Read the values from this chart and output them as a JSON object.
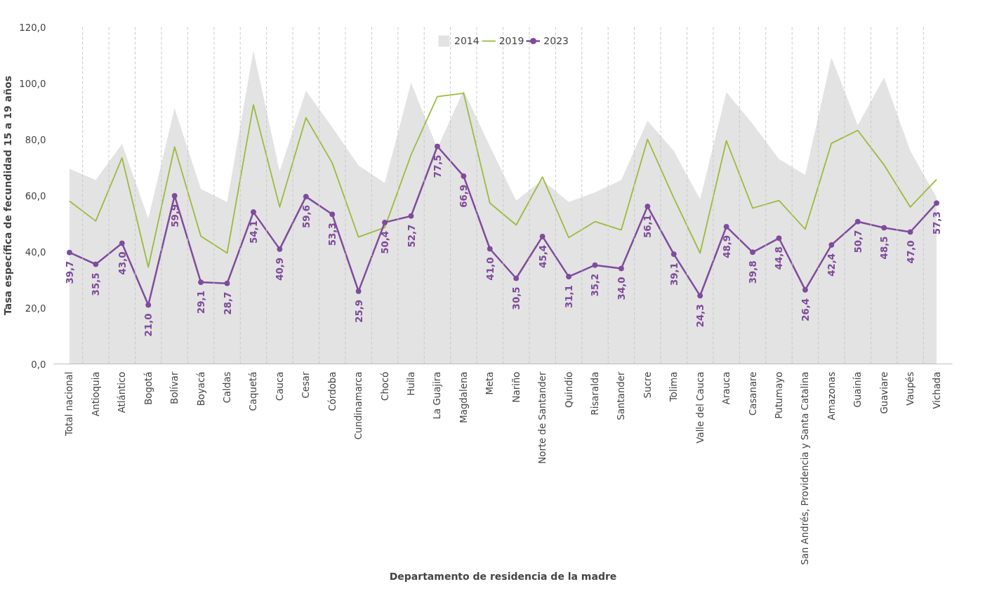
{
  "chart_data": {
    "type": "line",
    "xlabel": "Departamento de residencia de la madre",
    "ylabel": "Tasa específica de fecundidad 15 a 19 años",
    "categories": [
      "Total nacional",
      "Antioquia",
      "Atlántico",
      "Bogotá",
      "Bolívar",
      "Boyacá",
      "Caldas",
      "Caquetá",
      "Cauca",
      "Cesar",
      "Córdoba",
      "Cundinamarca",
      "Chocó",
      "Huila",
      "La Guajira",
      "Magdalena",
      "Meta",
      "Nariño",
      "Norte de Santander",
      "Quindío",
      "Risaralda",
      "Santander",
      "Sucre",
      "Tolima",
      "Valle del Cauca",
      "Arauca",
      "Casanare",
      "Putumayo",
      "San Andrés, Providencia y Santa Catalina",
      "Amazonas",
      "Guainía",
      "Guaviare",
      "Vaupés",
      "Vichada"
    ],
    "series": [
      {
        "name": "2014",
        "type": "area",
        "color": "#e3e3e3",
        "values": [
          69.5,
          65.5,
          78.4,
          51.8,
          91.1,
          62.3,
          57.7,
          111.6,
          68.6,
          97.3,
          84.3,
          70.7,
          64.5,
          100.2,
          76.8,
          97.5,
          77.5,
          58.2,
          65.5,
          57.7,
          61.1,
          65.5,
          86.6,
          75.9,
          58.6,
          96.8,
          85.5,
          73.0,
          67.3,
          109.1,
          85.0,
          102.0,
          75.9,
          59.3
        ]
      },
      {
        "name": "2019",
        "color": "#9bbb3b",
        "marker": "none",
        "values": [
          58.0,
          50.9,
          73.4,
          34.5,
          77.3,
          45.5,
          39.5,
          92.3,
          55.9,
          87.7,
          71.6,
          45.2,
          48.6,
          74.5,
          95.2,
          96.4,
          57.3,
          49.5,
          66.6,
          45.0,
          50.7,
          47.7,
          80.0,
          59.1,
          39.5,
          79.5,
          55.5,
          58.2,
          48.0,
          78.6,
          83.2,
          70.9,
          55.9,
          65.7
        ]
      },
      {
        "name": "2023",
        "color": "#7f4b9c",
        "marker": "circle",
        "values": [
          39.7,
          35.5,
          43.0,
          21.0,
          59.9,
          29.1,
          28.7,
          54.1,
          40.9,
          59.6,
          53.3,
          25.9,
          50.4,
          52.7,
          77.5,
          66.9,
          41.0,
          30.5,
          45.4,
          31.1,
          35.2,
          34.0,
          56.1,
          39.1,
          24.3,
          48.9,
          39.8,
          44.8,
          26.4,
          42.4,
          50.7,
          48.5,
          47.0,
          57.3
        ],
        "value_labels": [
          "39,7",
          "35,5",
          "43,0",
          "21,0",
          "59,9",
          "29,1",
          "28,7",
          "54,1",
          "40,9",
          "59,6",
          "53,3",
          "25,9",
          "50,4",
          "52,7",
          "77,5",
          "66,9",
          "41,0",
          "30,5",
          "45,4",
          "31,1",
          "35,2",
          "34,0",
          "56,1",
          "39,1",
          "24,3",
          "48,9",
          "39,8",
          "44,8",
          "26,4",
          "42,4",
          "50,7",
          "48,5",
          "47,0",
          "57,3"
        ]
      }
    ],
    "ylim": [
      0,
      120
    ],
    "yticks": [
      {
        "value": 0,
        "label": "0,0"
      },
      {
        "value": 20,
        "label": "20,0"
      },
      {
        "value": 40,
        "label": "40,0"
      },
      {
        "value": 60,
        "label": "60,0"
      },
      {
        "value": 80,
        "label": "80,0"
      },
      {
        "value": 100,
        "label": "100,0"
      },
      {
        "value": 120,
        "label": "120,0"
      }
    ],
    "grid": "x",
    "legend": "top"
  }
}
